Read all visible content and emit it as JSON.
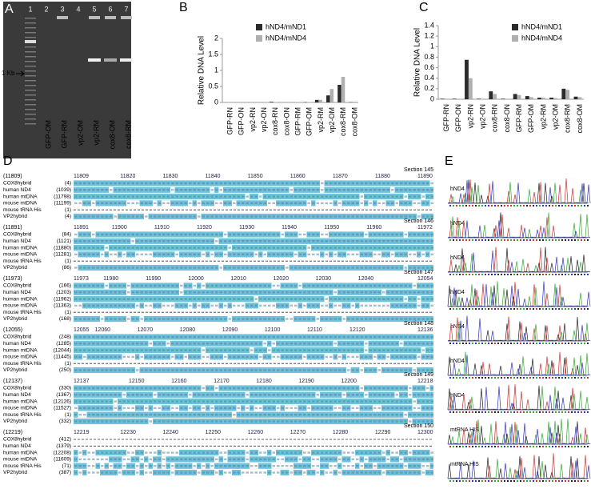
{
  "gel": {
    "letter": "A",
    "lane_numbers": [
      "1",
      "2",
      "3",
      "4",
      "5",
      "6",
      "7"
    ],
    "lane_labels": [
      "GFP-OM",
      "GFP-RM",
      "vp2-OM",
      "vp2-RM",
      "cox8-OM",
      "cox8-RM"
    ],
    "marker": "1 Kb"
  },
  "chart_data": [
    {
      "type": "bar",
      "letter": "B",
      "ylabel": "Relative DNA Level",
      "categories": [
        "GFP-RN",
        "GFP-ON",
        "vp2-RN",
        "vp2-ON",
        "cox8-RN",
        "cox8-ON",
        "GFP-RM",
        "GFP-OM",
        "vp2-RM",
        "vp2-OM",
        "cox8-RM",
        "cox8-OM"
      ],
      "series": [
        {
          "name": "hND4/mND1",
          "color": "#2b2b2b",
          "values": [
            0,
            0,
            0,
            0,
            0.02,
            0,
            0,
            0.01,
            0.08,
            0.22,
            0.55,
            0.01
          ]
        },
        {
          "name": "hND4/mND4",
          "color": "#b0b0b0",
          "values": [
            0,
            0,
            0,
            0,
            0.01,
            0,
            0.01,
            0.01,
            0.08,
            0.42,
            0.8,
            0.02
          ]
        }
      ],
      "ylim": [
        0,
        2
      ],
      "yticks": [
        0,
        0.5,
        1,
        1.5,
        2
      ]
    },
    {
      "type": "bar",
      "letter": "C",
      "ylabel": "Relative DNA Level",
      "categories": [
        "GFP-RN",
        "GFP-ON",
        "vp2-RN",
        "vp2-ON",
        "cox8-RN",
        "cox8-ON",
        "GFP-RM",
        "GFP-OM",
        "vp2-RM",
        "vp2-OM",
        "cox8-RM",
        "cox8-OM"
      ],
      "series": [
        {
          "name": "hND4/mND1",
          "color": "#2b2b2b",
          "values": [
            0.01,
            0.01,
            0.75,
            0.01,
            0.15,
            0.01,
            0.1,
            0.06,
            0.03,
            0.03,
            0.2,
            0.05
          ]
        },
        {
          "name": "hND4/mND4",
          "color": "#b0b0b0",
          "values": [
            0.01,
            0.01,
            0.4,
            0.01,
            0.1,
            0.01,
            0.08,
            0.04,
            0.03,
            0.02,
            0.18,
            0.04
          ]
        }
      ],
      "ylim": [
        0,
        1.4
      ],
      "yticks": [
        0,
        0.2,
        0.4,
        0.6,
        0.8,
        1,
        1.2,
        1.4
      ]
    }
  ],
  "alignment": {
    "letter": "D",
    "sections": [
      {
        "label": "Section 145",
        "start": "(11809)",
        "ticks": [
          11809,
          11820,
          11830,
          11840,
          11850,
          11860,
          11870,
          11880,
          11890
        ],
        "rows": [
          {
            "name": "COX8hybrid",
            "pos": "(4)"
          },
          {
            "name": "human ND4",
            "pos": "(1039)"
          },
          {
            "name": "human mtDNA",
            "pos": "(11798)"
          },
          {
            "name": "mouse mtDNA",
            "pos": "(11199)"
          },
          {
            "name": "mouse tRNA His",
            "pos": "(1)"
          },
          {
            "name": "VP2hybrid",
            "pos": "(4)"
          }
        ]
      },
      {
        "label": "Section 146",
        "start": "(11891)",
        "ticks": [
          11891,
          11900,
          11910,
          11920,
          11930,
          11940,
          11950,
          11960,
          11972
        ],
        "rows": [
          {
            "name": "COX8hybrid",
            "pos": "(84)"
          },
          {
            "name": "human ND4",
            "pos": "(1121)"
          },
          {
            "name": "human mtDNA",
            "pos": "(11880)"
          },
          {
            "name": "mouse mtDNA",
            "pos": "(11281)"
          },
          {
            "name": "mouse tRNA His",
            "pos": "(1)"
          },
          {
            "name": "VP2hybrid",
            "pos": "(86)"
          }
        ]
      },
      {
        "label": "Section 147",
        "start": "(11973)",
        "ticks": [
          11973,
          11980,
          11990,
          12000,
          12010,
          12020,
          12030,
          12040,
          12054
        ],
        "rows": [
          {
            "name": "COX8hybrid",
            "pos": "(166)"
          },
          {
            "name": "human ND4",
            "pos": "(1203)"
          },
          {
            "name": "human mtDNA",
            "pos": "(11962)"
          },
          {
            "name": "mouse mtDNA",
            "pos": "(11363)"
          },
          {
            "name": "mouse tRNA His",
            "pos": "(1)"
          },
          {
            "name": "VP2hybrid",
            "pos": "(168)"
          }
        ]
      },
      {
        "label": "Section 148",
        "start": "(12055)",
        "ticks": [
          12055,
          12060,
          12070,
          12080,
          12090,
          12100,
          12110,
          12120,
          12136
        ],
        "rows": [
          {
            "name": "COX8hybrid",
            "pos": "(248)"
          },
          {
            "name": "human ND4",
            "pos": "(1285)"
          },
          {
            "name": "human mtDNA",
            "pos": "(12044)"
          },
          {
            "name": "mouse mtDNA",
            "pos": "(11445)"
          },
          {
            "name": "mouse tRNA His",
            "pos": "(1)"
          },
          {
            "name": "VP2hybrid",
            "pos": "(250)"
          }
        ]
      },
      {
        "label": "Section 149",
        "start": "(12137)",
        "ticks": [
          12137,
          12150,
          12160,
          12170,
          12180,
          12190,
          12200,
          12218
        ],
        "rows": [
          {
            "name": "COX8hybrid",
            "pos": "(330)"
          },
          {
            "name": "human ND4",
            "pos": "(1367)"
          },
          {
            "name": "human mtDNA",
            "pos": "(12126)"
          },
          {
            "name": "mouse mtDNA",
            "pos": "(11527)"
          },
          {
            "name": "mouse tRNA His",
            "pos": "(1)"
          },
          {
            "name": "VP2hybrid",
            "pos": "(332)"
          }
        ]
      },
      {
        "label": "Section 150",
        "start": "(12219)",
        "ticks": [
          12219,
          12230,
          12240,
          12250,
          12260,
          12270,
          12280,
          12290,
          12300
        ],
        "rows": [
          {
            "name": "COX8hybrid",
            "pos": "(412)"
          },
          {
            "name": "human ND4",
            "pos": "(1379)"
          },
          {
            "name": "human mtDNA",
            "pos": "(12208)"
          },
          {
            "name": "mouse mtDNA",
            "pos": "(11609)"
          },
          {
            "name": "mouse tRNA His",
            "pos": "(71)"
          },
          {
            "name": "VP2hybrid",
            "pos": "(387)"
          }
        ]
      }
    ]
  },
  "chromatograms": {
    "letter": "E",
    "labels": [
      "hND4",
      "hND4",
      "hND4",
      "hND4",
      "hND4",
      "hND4",
      "hND4",
      "mtRNA HIS",
      "mtRNA HIS"
    ]
  }
}
